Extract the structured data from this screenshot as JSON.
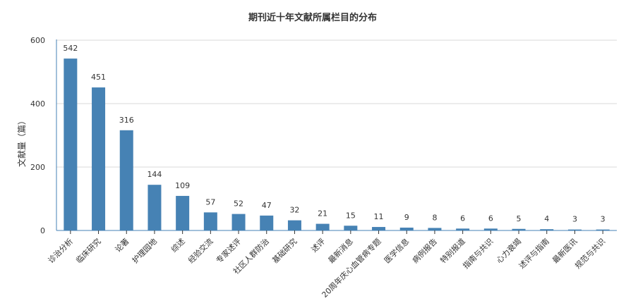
{
  "chart_data": {
    "type": "bar",
    "title": "期刊近十年文献所属栏目的分布",
    "xlabel": "",
    "ylabel": "文献量（篇）",
    "ylim": [
      0,
      600
    ],
    "yticks": [
      0,
      200,
      400,
      600
    ],
    "grid": true,
    "bar_color": "#4682b4",
    "categories": [
      "诊治分析",
      "临床研究",
      "论著",
      "护理园地",
      "综述",
      "经验交流",
      "专家述评",
      "社区人群防治",
      "基础研究",
      "述评",
      "最新消息",
      "20周年庆心血管病专题",
      "医学信息",
      "病例报告",
      "特别报道",
      "指南与共识",
      "心力衰竭",
      "述评与指南",
      "最新医讯",
      "规范与共识"
    ],
    "values": [
      542,
      451,
      316,
      144,
      109,
      57,
      52,
      47,
      32,
      21,
      15,
      11,
      9,
      8,
      6,
      6,
      5,
      4,
      3,
      3
    ]
  }
}
